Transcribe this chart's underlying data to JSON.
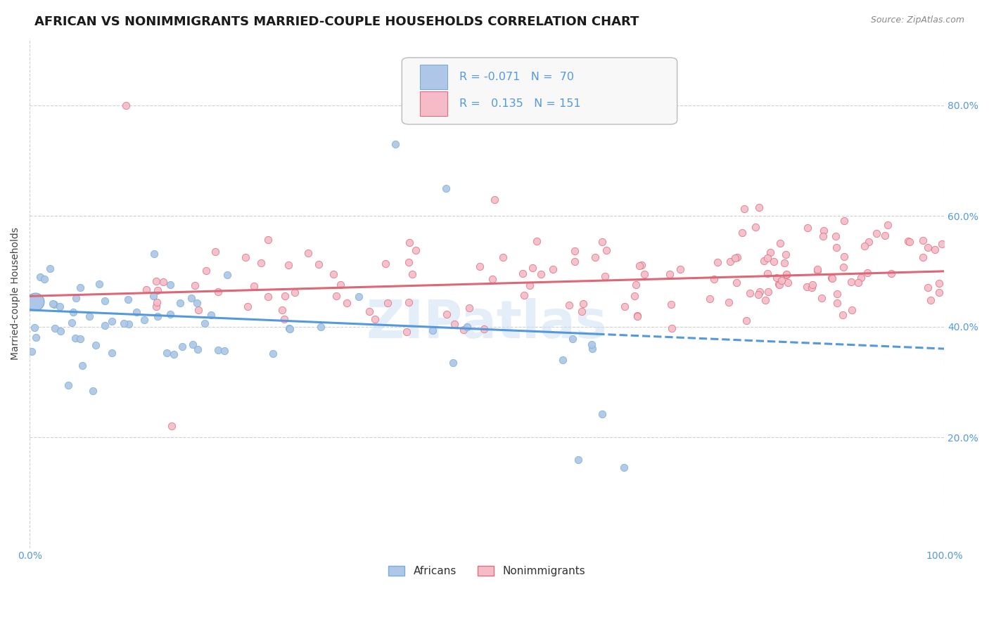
{
  "title": "AFRICAN VS NONIMMIGRANTS MARRIED-COUPLE HOUSEHOLDS CORRELATION CHART",
  "source": "Source: ZipAtlas.com",
  "ylabel": "Married-couple Households",
  "bg_color": "#ffffff",
  "grid_color": "#d0d0d0",
  "africans_color": "#aec6e8",
  "africans_edge_color": "#7aafd4",
  "nonimmigrants_color": "#f5bcc8",
  "nonimmigrants_edge_color": "#e07080",
  "trend_african_color": "#5599dd",
  "trend_nonimmigrant_color": "#dd6677",
  "tick_color": "#5599dd",
  "title_fontsize": 13,
  "axis_fontsize": 10,
  "scatter_size": 55,
  "xlim": [
    0.0,
    1.0
  ],
  "ylim": [
    0.0,
    0.92
  ],
  "ytick_vals": [
    0.2,
    0.4,
    0.6,
    0.8
  ],
  "ytick_labels": [
    "20.0%",
    "40.0%",
    "60.0%",
    "80.0%"
  ],
  "trend_a_x0": 0.0,
  "trend_a_x1": 1.0,
  "trend_a_y0": 0.43,
  "trend_a_y1": 0.36,
  "trend_a_solid_end": 0.62,
  "trend_n_x0": 0.0,
  "trend_n_x1": 1.0,
  "trend_n_y0": 0.455,
  "trend_n_y1": 0.5,
  "watermark": "ZIPatlas",
  "legend_african_text": "R = -0.071   N =  70",
  "legend_nonimm_text": "R =   0.135   N = 151"
}
